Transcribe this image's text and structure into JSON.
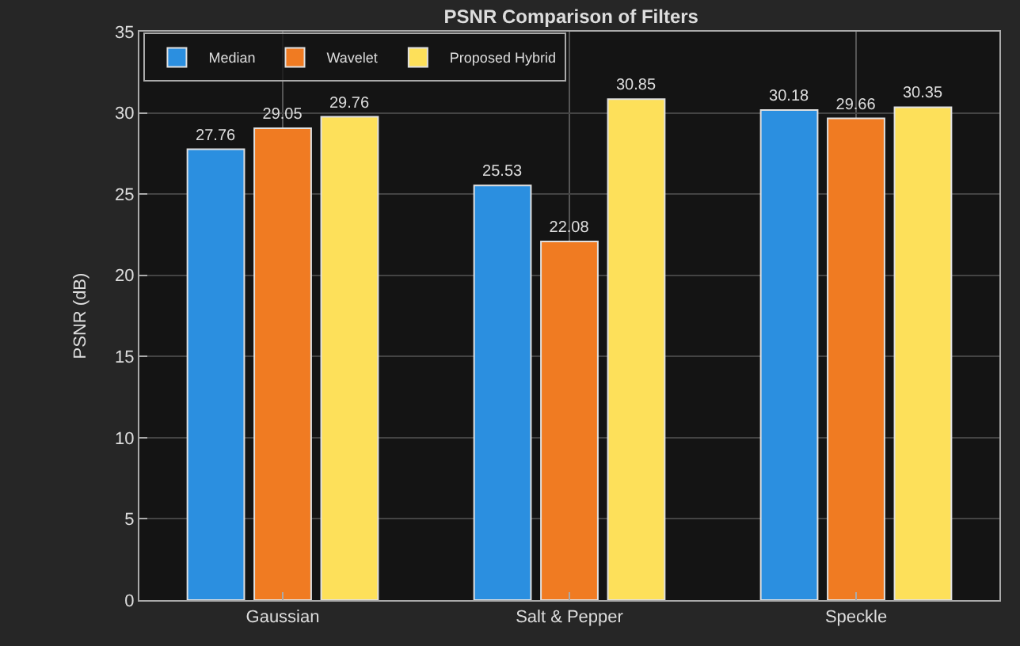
{
  "chart_data": {
    "type": "bar",
    "title": "PSNR Comparison of Filters",
    "ylabel": "PSNR (dB)",
    "categories": [
      "Gaussian",
      "Salt & Pepper",
      "Speckle"
    ],
    "series": [
      {
        "name": "Median",
        "color": "#2b8fe0",
        "values": [
          27.76,
          25.53,
          30.18
        ],
        "value_labels": [
          "27.76",
          "25.53",
          "30.18"
        ]
      },
      {
        "name": "Wavelet",
        "color": "#f07b22",
        "values": [
          29.05,
          22.08,
          29.66
        ],
        "value_labels": [
          "29.05",
          "22.08",
          "29.66"
        ]
      },
      {
        "name": "Proposed Hybrid",
        "color": "#fde05a",
        "values": [
          29.76,
          30.85,
          30.35
        ],
        "value_labels": [
          "29.76",
          "30.85",
          "30.35"
        ]
      }
    ],
    "ylim": [
      0,
      35
    ],
    "yticks": [
      0,
      5,
      10,
      15,
      20,
      25,
      30,
      35
    ],
    "grid": true,
    "legend": "top left"
  }
}
